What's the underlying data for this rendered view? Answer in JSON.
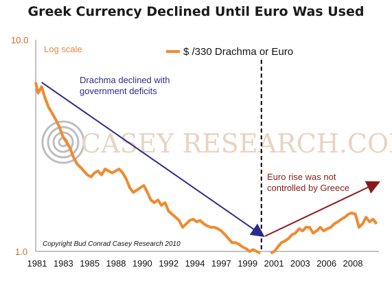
{
  "chart_data": {
    "type": "line",
    "title": "Greek Currency Declined Until Euro Was Used",
    "y_scale": "log",
    "scale_note": "Log scale",
    "ylim": [
      1.0,
      10.0
    ],
    "y_ticks": [
      "10.0",
      "1.0"
    ],
    "x_tick_labels": [
      "1981",
      "1983",
      "1985",
      "1988",
      "1990",
      "1992",
      "1994",
      "1997",
      "1999",
      "2001",
      "2003",
      "2006",
      "2008"
    ],
    "xlim": [
      1981,
      2010.2
    ],
    "series": [
      {
        "name": "$ /330 Drachma or Euro",
        "color": "#f08a30",
        "segments": [
          {
            "x": [
              1981.0,
              1981.2,
              1981.5,
              1981.8,
              1982.1,
              1982.4,
              1982.7,
              1983.0,
              1983.3,
              1983.6,
              1983.9,
              1984.2,
              1984.5,
              1984.8,
              1985.1,
              1985.4,
              1985.7,
              1986.0,
              1986.3,
              1986.6,
              1986.9,
              1987.2,
              1987.5,
              1987.8,
              1988.1,
              1988.4,
              1988.7,
              1989.0,
              1989.3,
              1989.6,
              1989.9,
              1990.2,
              1990.5,
              1990.8,
              1991.1,
              1991.4,
              1991.7,
              1992.0,
              1992.3,
              1992.6,
              1992.9,
              1993.2,
              1993.5,
              1993.8,
              1994.1,
              1994.4,
              1994.7,
              1995.0,
              1995.3,
              1995.6,
              1995.9,
              1996.2,
              1996.5,
              1996.8,
              1997.1,
              1997.4,
              1997.7,
              1998.0,
              1998.3,
              1998.6,
              1998.9,
              1999.2,
              1999.5,
              1999.8,
              2000.1
            ],
            "y": [
              6.3,
              5.6,
              6.0,
              5.3,
              4.8,
              4.5,
              4.2,
              3.9,
              3.5,
              3.3,
              3.1,
              2.8,
              2.6,
              2.5,
              2.4,
              2.3,
              2.25,
              2.35,
              2.4,
              2.3,
              2.45,
              2.4,
              2.35,
              2.4,
              2.45,
              2.35,
              2.2,
              2.0,
              1.9,
              1.95,
              2.0,
              2.05,
              1.9,
              1.75,
              1.7,
              1.75,
              1.65,
              1.7,
              1.55,
              1.5,
              1.45,
              1.4,
              1.3,
              1.35,
              1.4,
              1.42,
              1.38,
              1.4,
              1.35,
              1.32,
              1.3,
              1.3,
              1.28,
              1.25,
              1.2,
              1.15,
              1.1,
              1.1,
              1.08,
              1.05,
              1.03,
              1.0,
              1.02,
              1.0,
              0.98
            ]
          },
          {
            "x": [
              2001.0,
              2001.3,
              2001.6,
              2001.9,
              2002.2,
              2002.5,
              2002.8,
              2003.1,
              2003.4,
              2003.7,
              2004.0,
              2004.3,
              2004.6,
              2004.9,
              2005.2,
              2005.5,
              2005.8,
              2006.1,
              2006.4,
              2006.7,
              2007.0,
              2007.3,
              2007.6,
              2007.9,
              2008.2,
              2008.5,
              2008.8,
              2009.1,
              2009.4,
              2009.7,
              2010.0
            ],
            "y": [
              0.98,
              1.0,
              1.05,
              1.1,
              1.12,
              1.15,
              1.2,
              1.22,
              1.28,
              1.25,
              1.3,
              1.3,
              1.22,
              1.25,
              1.3,
              1.25,
              1.28,
              1.3,
              1.35,
              1.38,
              1.42,
              1.45,
              1.5,
              1.52,
              1.5,
              1.3,
              1.35,
              1.45,
              1.38,
              1.42,
              1.35
            ]
          }
        ]
      }
    ],
    "annotations": [
      {
        "text": "Drachma declined with government deficits",
        "color": "#2b2b8c",
        "arrow": {
          "from": [
            1981.5,
            6.3
          ],
          "to": [
            2000.2,
            1.2
          ]
        }
      },
      {
        "text": "Euro rise was not controlled by Greece",
        "color": "#8b1a1a",
        "arrow": {
          "from": [
            2000.5,
            1.18
          ],
          "to": [
            2010.0,
            2.1
          ]
        }
      }
    ],
    "event_marker": {
      "x": 2000.2,
      "style": "dashed",
      "color": "#000000"
    },
    "watermark": "CASEY RESEARCH.COM",
    "copyright": "Copyright Bud Conrad Casey Research 2010"
  }
}
